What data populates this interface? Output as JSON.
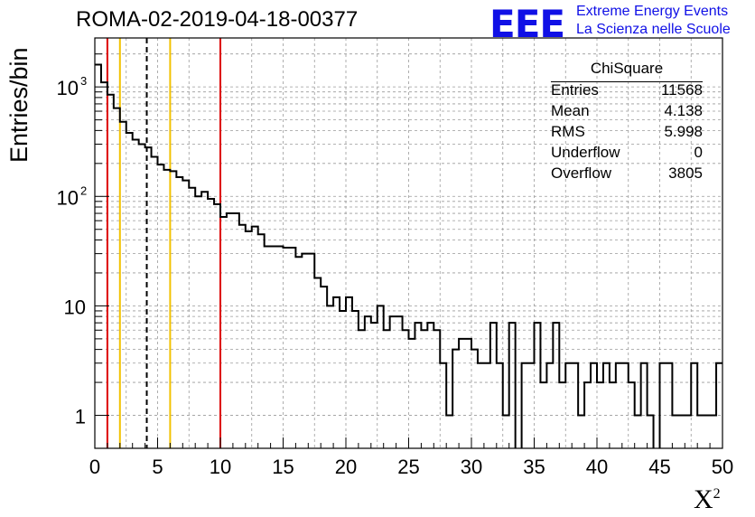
{
  "chart_data": {
    "type": "histogram",
    "title": "ROMA-02-2019-04-18-00377",
    "xlabel": "X",
    "xlabel_superscript": "2",
    "ylabel": "Entries/bin",
    "xlim": [
      0,
      50
    ],
    "ylim": [
      0.5,
      2800
    ],
    "yscale": "log",
    "grid": true,
    "bin_width": 0.5,
    "bin_counts": [
      1600,
      1100,
      850,
      640,
      480,
      380,
      330,
      300,
      280,
      230,
      195,
      175,
      170,
      150,
      140,
      120,
      100,
      110,
      95,
      85,
      65,
      70,
      70,
      55,
      48,
      53,
      45,
      35,
      35,
      35,
      34,
      34,
      28,
      30,
      30,
      18,
      15,
      10,
      12,
      9,
      12,
      9,
      6,
      8,
      7,
      10,
      6,
      8,
      8,
      6,
      5,
      7,
      6,
      7,
      6,
      3,
      1,
      4,
      5,
      5,
      4,
      3,
      3,
      7,
      3,
      1,
      7,
      0,
      3,
      3,
      7,
      2,
      3,
      7,
      2,
      3,
      3,
      1,
      2,
      3,
      2,
      3,
      2,
      3,
      3,
      2,
      1,
      3,
      1,
      0,
      3,
      3,
      1,
      1,
      1,
      3,
      1,
      1,
      1,
      3
    ],
    "markers": [
      {
        "x": 1,
        "color": "#dd0000",
        "style": "solid"
      },
      {
        "x": 2,
        "color": "#f2c200",
        "style": "solid"
      },
      {
        "x": 4.138,
        "color": "#000000",
        "style": "dashed"
      },
      {
        "x": 6,
        "color": "#f2c200",
        "style": "solid"
      },
      {
        "x": 10,
        "color": "#dd0000",
        "style": "solid"
      }
    ],
    "x_ticks": [
      "0",
      "5",
      "10",
      "15",
      "20",
      "25",
      "30",
      "35",
      "40",
      "45",
      "50"
    ],
    "y_ticks": [
      {
        "value": 1,
        "label": "1"
      },
      {
        "value": 10,
        "label": "10"
      },
      {
        "value": 100,
        "label": "10",
        "exp": "2"
      },
      {
        "value": 1000,
        "label": "10",
        "exp": "3"
      }
    ]
  },
  "stats": {
    "title": "ChiSquare",
    "rows": [
      {
        "label": "Entries",
        "value": "11568"
      },
      {
        "label": "Mean",
        "value": "4.138"
      },
      {
        "label": "RMS",
        "value": "5.998"
      },
      {
        "label": "Underflow",
        "value": "0"
      },
      {
        "label": "Overflow",
        "value": "3805"
      }
    ]
  },
  "logo": {
    "mark": "EEE",
    "line1": "Extreme Energy Events",
    "line2": "La Scienza nelle Scuole"
  },
  "colors": {
    "logo": "#1010e6",
    "red_marker": "#dd0000",
    "yellow_marker": "#f2c200"
  }
}
